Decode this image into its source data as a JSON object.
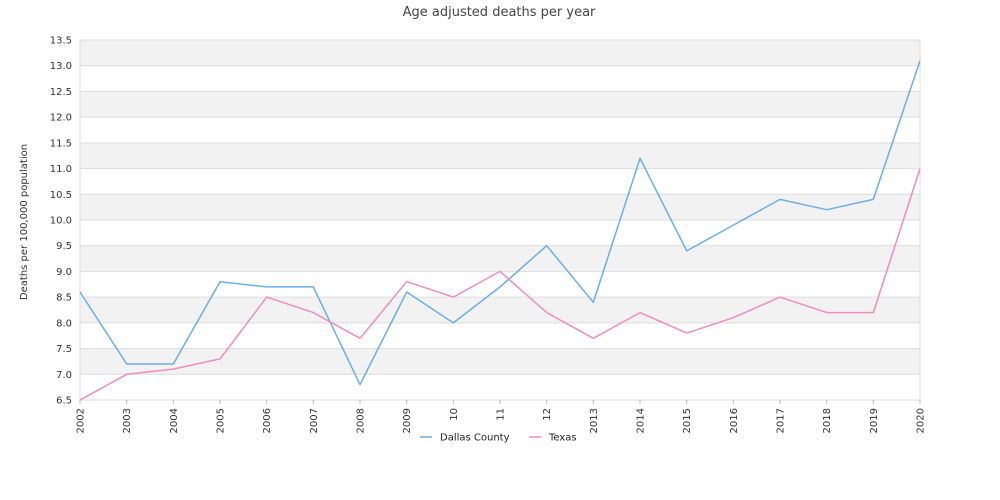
{
  "chart_data": {
    "type": "line",
    "title": "Age adjusted deaths per year",
    "xlabel": "",
    "ylabel": "Deaths per 100,000 population",
    "categories": [
      "2002",
      "2003",
      "2004",
      "2005",
      "2006",
      "2007",
      "2008",
      "2009",
      "10",
      "11",
      "12",
      "2013",
      "2014",
      "2015",
      "2016",
      "2017",
      "2018",
      "2019",
      "2020"
    ],
    "ylim": [
      6.5,
      13.5
    ],
    "yticks": [
      "6.5",
      "7.0",
      "7.5",
      "8.0",
      "8.5",
      "9.0",
      "9.5",
      "10.0",
      "10.5",
      "11.0",
      "11.5",
      "12.0",
      "12.5",
      "13.0",
      "13.5"
    ],
    "grid": "alternating horizontal bands",
    "legend_position": "bottom-center",
    "series": [
      {
        "name": "Dallas County",
        "color": "#6aaee8",
        "values": [
          8.6,
          7.2,
          7.2,
          8.8,
          8.7,
          8.7,
          6.8,
          8.6,
          8.0,
          8.7,
          9.5,
          8.4,
          11.2,
          9.4,
          9.9,
          10.4,
          10.2,
          10.4,
          13.1
        ]
      },
      {
        "name": "Texas",
        "color": "#f08cbf",
        "values": [
          6.5,
          7.0,
          7.1,
          7.3,
          8.5,
          8.2,
          7.7,
          8.8,
          8.5,
          9.0,
          8.2,
          7.7,
          8.2,
          7.8,
          8.1,
          8.5,
          8.2,
          8.2,
          11.0
        ]
      }
    ]
  }
}
